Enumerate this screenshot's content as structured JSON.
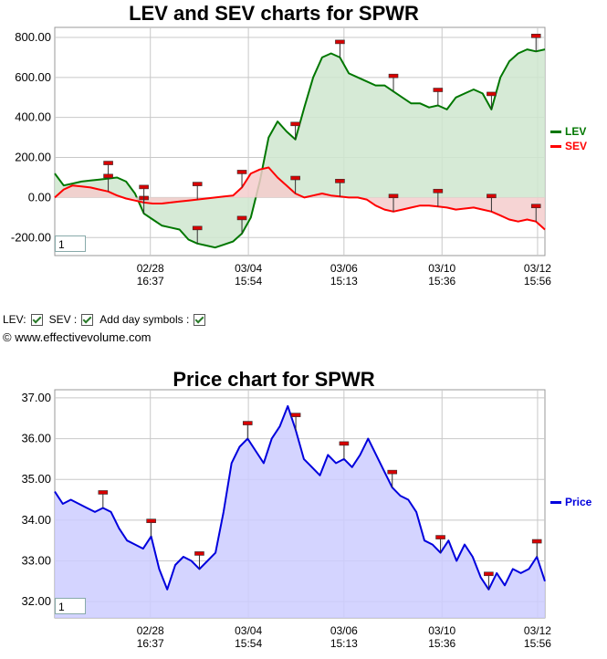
{
  "chart_data": [
    {
      "type": "area",
      "title": "LEV and SEV charts for SPWR",
      "ylim": [
        -290,
        850
      ],
      "y_ticks": [
        "800.00",
        "600.00",
        "400.00",
        "200.00",
        "0.00",
        "-200.00"
      ],
      "y_tick_values": [
        800,
        600,
        400,
        200,
        0,
        -200
      ],
      "x_tick_labels": [
        {
          "date": "02/28",
          "time": "16:37"
        },
        {
          "date": "03/04",
          "time": "15:54"
        },
        {
          "date": "03/06",
          "time": "15:13"
        },
        {
          "date": "03/10",
          "time": "15:36"
        },
        {
          "date": "03/12",
          "time": "15:56"
        }
      ],
      "grid": true,
      "legend_position": "right",
      "series": [
        {
          "name": "LEV",
          "color": "#007700",
          "values": [
            120,
            60,
            70,
            80,
            85,
            90,
            95,
            100,
            80,
            20,
            -80,
            -110,
            -140,
            -150,
            -160,
            -210,
            -230,
            -240,
            -250,
            -235,
            -220,
            -180,
            -100,
            80,
            300,
            380,
            330,
            290,
            450,
            600,
            700,
            720,
            700,
            620,
            600,
            580,
            560,
            560,
            530,
            500,
            470,
            470,
            450,
            460,
            440,
            500,
            520,
            540,
            520,
            440,
            600,
            680,
            720,
            740,
            730,
            740
          ]
        },
        {
          "name": "SEV",
          "color": "#ff0000",
          "values": [
            0,
            40,
            60,
            55,
            50,
            40,
            30,
            10,
            -5,
            -15,
            -25,
            -30,
            -30,
            -25,
            -20,
            -15,
            -10,
            -5,
            0,
            5,
            10,
            50,
            120,
            140,
            150,
            100,
            60,
            20,
            0,
            10,
            20,
            10,
            5,
            0,
            0,
            -10,
            -40,
            -60,
            -70,
            -60,
            -50,
            -40,
            -40,
            -45,
            -50,
            -60,
            -55,
            -50,
            -60,
            -70,
            -90,
            -110,
            -120,
            -110,
            -120,
            -160
          ]
        }
      ]
    },
    {
      "type": "area",
      "title": "Price chart for SPWR",
      "ylim": [
        31.6,
        37.2
      ],
      "y_ticks": [
        "37.00",
        "36.00",
        "35.00",
        "34.00",
        "33.00",
        "32.00"
      ],
      "y_tick_values": [
        37,
        36,
        35,
        34,
        33,
        32
      ],
      "x_tick_labels": [
        {
          "date": "02/28",
          "time": "16:37"
        },
        {
          "date": "03/04",
          "time": "15:54"
        },
        {
          "date": "03/06",
          "time": "15:13"
        },
        {
          "date": "03/10",
          "time": "15:36"
        },
        {
          "date": "03/12",
          "time": "15:56"
        }
      ],
      "grid": true,
      "legend_position": "right",
      "series": [
        {
          "name": "Price",
          "color": "#0000dd",
          "values": [
            34.7,
            34.4,
            34.5,
            34.4,
            34.3,
            34.2,
            34.3,
            34.2,
            33.8,
            33.5,
            33.4,
            33.3,
            33.6,
            32.8,
            32.3,
            32.9,
            33.1,
            33.0,
            32.8,
            33.0,
            33.2,
            34.2,
            35.4,
            35.8,
            36.0,
            35.7,
            35.4,
            36.0,
            36.3,
            36.8,
            36.2,
            35.5,
            35.3,
            35.1,
            35.6,
            35.4,
            35.5,
            35.3,
            35.6,
            36.0,
            35.6,
            35.2,
            34.8,
            34.6,
            34.5,
            34.2,
            33.5,
            33.4,
            33.2,
            33.5,
            33.0,
            33.4,
            33.1,
            32.6,
            32.3,
            32.7,
            32.4,
            32.8,
            32.7,
            32.8,
            33.1,
            32.5
          ]
        }
      ]
    }
  ],
  "controls": {
    "lev_label": "LEV:",
    "sev_label": "SEV :",
    "day_symbols_label": "Add day symbols :"
  },
  "copyright": "© www.effectivevolume.com",
  "zoom_value_1": "1",
  "zoom_value_2": "1",
  "colors": {
    "lev": "#007700",
    "sev": "#ff0000",
    "price": "#0000dd",
    "lev_fill": "#cfe6cf",
    "sev_fill": "#f4cccc",
    "price_fill": "#ccccff",
    "grid": "#c8c8c8",
    "marker": "#d80000"
  }
}
